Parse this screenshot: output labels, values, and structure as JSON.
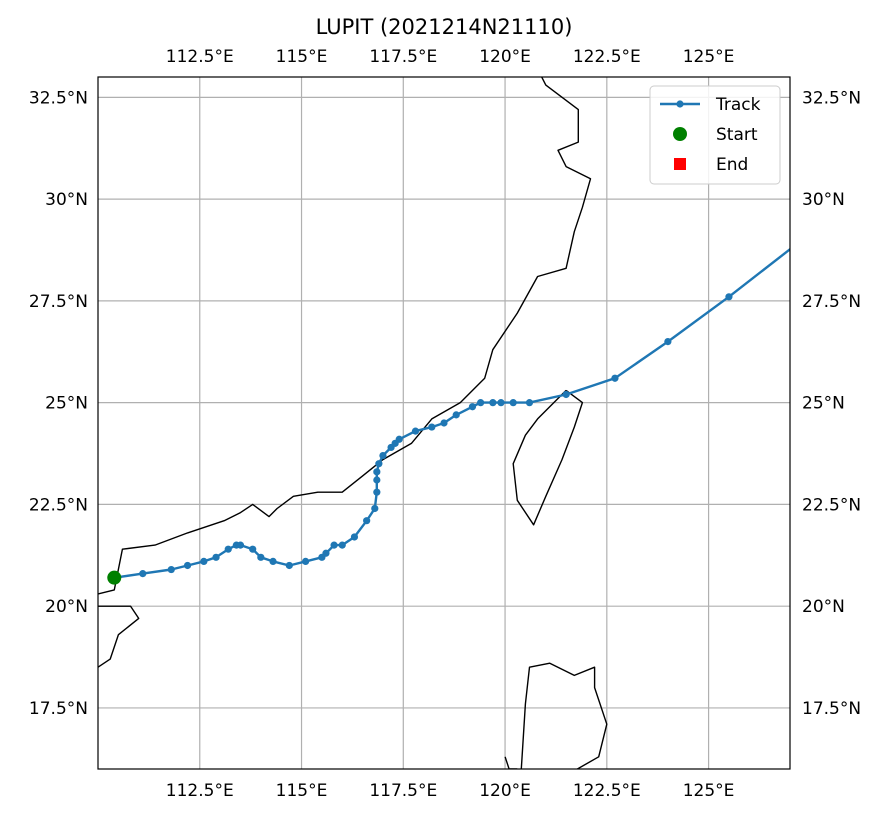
{
  "chart_data": {
    "type": "map-track",
    "title": "LUPIT (2021214N21110)",
    "projection": "PlateCarree",
    "extent": {
      "lon": [
        110.0,
        127.0
      ],
      "lat": [
        16.0,
        33.0
      ]
    },
    "grid": true,
    "x_ticks": [
      {
        "value": 112.5,
        "label": "112.5°E"
      },
      {
        "value": 115,
        "label": "115°E"
      },
      {
        "value": 117.5,
        "label": "117.5°E"
      },
      {
        "value": 120,
        "label": "120°E"
      },
      {
        "value": 122.5,
        "label": "122.5°E"
      },
      {
        "value": 125,
        "label": "125°E"
      }
    ],
    "y_ticks": [
      {
        "value": 17.5,
        "label": "17.5°N"
      },
      {
        "value": 20,
        "label": "20°N"
      },
      {
        "value": 22.5,
        "label": "22.5°N"
      },
      {
        "value": 25,
        "label": "25°N"
      },
      {
        "value": 27.5,
        "label": "27.5°N"
      },
      {
        "value": 30,
        "label": "30°N"
      },
      {
        "value": 32.5,
        "label": "32.5°N"
      }
    ],
    "legend": {
      "placement": "top-right",
      "entries": [
        {
          "label": "Track",
          "marker": "line-dot",
          "color": "#1f77b4"
        },
        {
          "label": "Start",
          "marker": "circle",
          "color": "#008000"
        },
        {
          "label": "End",
          "marker": "square",
          "color": "#ff0000"
        }
      ]
    },
    "track": {
      "name": "Track",
      "color": "#1f77b4",
      "points": [
        [
          110.4,
          20.7
        ],
        [
          111.1,
          20.8
        ],
        [
          111.8,
          20.9
        ],
        [
          112.2,
          21.0
        ],
        [
          112.6,
          21.1
        ],
        [
          112.9,
          21.2
        ],
        [
          113.2,
          21.4
        ],
        [
          113.4,
          21.5
        ],
        [
          113.5,
          21.5
        ],
        [
          113.8,
          21.4
        ],
        [
          114.0,
          21.2
        ],
        [
          114.3,
          21.1
        ],
        [
          114.7,
          21.0
        ],
        [
          115.1,
          21.1
        ],
        [
          115.5,
          21.2
        ],
        [
          115.6,
          21.3
        ],
        [
          115.8,
          21.5
        ],
        [
          116.0,
          21.5
        ],
        [
          116.3,
          21.7
        ],
        [
          116.6,
          22.1
        ],
        [
          116.8,
          22.4
        ],
        [
          116.85,
          22.8
        ],
        [
          116.85,
          23.1
        ],
        [
          116.85,
          23.3
        ],
        [
          116.9,
          23.5
        ],
        [
          117.0,
          23.7
        ],
        [
          117.2,
          23.9
        ],
        [
          117.3,
          24.0
        ],
        [
          117.4,
          24.1
        ],
        [
          117.8,
          24.3
        ],
        [
          118.2,
          24.4
        ],
        [
          118.5,
          24.5
        ],
        [
          118.8,
          24.7
        ],
        [
          119.2,
          24.9
        ],
        [
          119.4,
          25.0
        ],
        [
          119.7,
          25.0
        ],
        [
          119.9,
          25.0
        ],
        [
          120.2,
          25.0
        ],
        [
          120.6,
          25.0
        ],
        [
          121.5,
          25.2
        ],
        [
          122.7,
          25.6
        ],
        [
          124.0,
          26.5
        ],
        [
          125.5,
          27.6
        ],
        [
          127.3,
          29.0
        ]
      ]
    },
    "start": {
      "lon": 110.4,
      "lat": 20.7,
      "color": "#008000"
    },
    "end": {
      "lon": 127.3,
      "lat": 29.0,
      "color": "#ff0000"
    },
    "coastlines": [
      [
        [
          120.8,
          33.2
        ],
        [
          121.0,
          32.8
        ],
        [
          121.8,
          32.2
        ],
        [
          121.8,
          31.4
        ],
        [
          121.3,
          31.2
        ],
        [
          121.5,
          30.8
        ],
        [
          122.1,
          30.5
        ],
        [
          121.9,
          29.8
        ],
        [
          121.7,
          29.2
        ],
        [
          121.5,
          28.3
        ],
        [
          120.8,
          28.1
        ],
        [
          120.3,
          27.2
        ],
        [
          119.7,
          26.3
        ],
        [
          119.5,
          25.6
        ],
        [
          118.9,
          25.0
        ],
        [
          118.2,
          24.6
        ],
        [
          117.7,
          24.0
        ],
        [
          117.0,
          23.6
        ],
        [
          116.5,
          23.2
        ],
        [
          116.0,
          22.8
        ],
        [
          115.4,
          22.8
        ],
        [
          114.8,
          22.7
        ],
        [
          114.4,
          22.4
        ],
        [
          114.2,
          22.2
        ],
        [
          113.8,
          22.5
        ],
        [
          113.5,
          22.3
        ],
        [
          113.1,
          22.1
        ],
        [
          112.2,
          21.8
        ],
        [
          111.4,
          21.5
        ],
        [
          110.6,
          21.4
        ],
        [
          110.4,
          20.4
        ],
        [
          110.0,
          20.3
        ]
      ],
      [
        [
          121.5,
          25.3
        ],
        [
          121.9,
          25.0
        ],
        [
          121.7,
          24.4
        ],
        [
          121.4,
          23.6
        ],
        [
          121.0,
          22.7
        ],
        [
          120.7,
          22.0
        ],
        [
          120.3,
          22.6
        ],
        [
          120.2,
          23.5
        ],
        [
          120.5,
          24.2
        ],
        [
          120.8,
          24.6
        ],
        [
          121.5,
          25.3
        ]
      ],
      [
        [
          110.0,
          18.5
        ],
        [
          110.3,
          18.7
        ],
        [
          110.5,
          19.3
        ],
        [
          111.0,
          19.7
        ],
        [
          110.8,
          20.0
        ],
        [
          110.4,
          20.0
        ],
        [
          110.0,
          20.0
        ]
      ],
      [
        [
          120.0,
          16.3
        ],
        [
          120.1,
          16.0
        ],
        [
          120.3,
          16.0
        ]
      ],
      [
        [
          120.4,
          16.0
        ],
        [
          120.5,
          17.6
        ],
        [
          120.6,
          18.5
        ],
        [
          121.1,
          18.6
        ],
        [
          121.7,
          18.3
        ],
        [
          122.2,
          18.5
        ],
        [
          122.2,
          18.0
        ],
        [
          122.5,
          17.1
        ],
        [
          122.3,
          16.3
        ],
        [
          121.6,
          15.9
        ]
      ]
    ]
  }
}
